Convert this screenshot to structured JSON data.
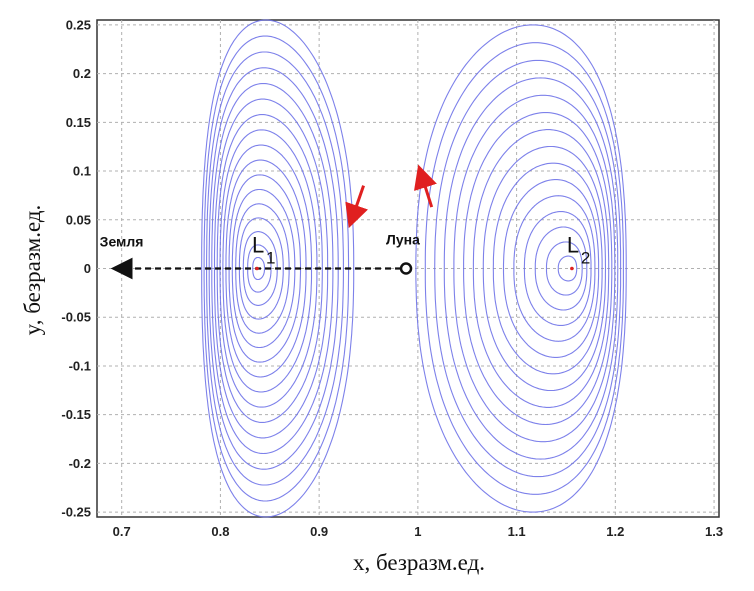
{
  "chart_data": {
    "type": "line",
    "xlabel": "x, безразм.ед.",
    "ylabel": "y, безразм.ед.",
    "xlim": [
      0.675,
      1.305
    ],
    "ylim": [
      -0.255,
      0.255
    ],
    "xticks": [
      "0.7",
      "0.8",
      "0.9",
      "1",
      "1.1",
      "1.2",
      "1.3"
    ],
    "yticks": [
      "0.25",
      "0.2",
      "0.15",
      "0.1",
      "0.05",
      "0",
      "-0.05",
      "-0.1",
      "-0.15",
      "-0.2",
      "-0.25"
    ],
    "grid": true,
    "orbit_color": "#6f73e8",
    "marker_color": "#e02020",
    "annotations": {
      "earth": {
        "label": "Земля",
        "x": 0.7,
        "y": 0
      },
      "moon": {
        "label": "Луна",
        "x": 0.988,
        "y": 0
      },
      "L1": {
        "label": "L",
        "sub": "1",
        "x": 0.837,
        "y": 0
      },
      "L2": {
        "label": "L",
        "sub": "2",
        "x": 1.156,
        "y": 0
      }
    },
    "families": [
      {
        "point": "L1",
        "center_x": 0.837,
        "x_inner": 0.8,
        "x_outer": 0.777,
        "y_extent": 0.255,
        "neck_x": 0.935,
        "count": 17
      },
      {
        "point": "L2",
        "center_x": 1.156,
        "x_inner": 1.19,
        "x_outer": 1.215,
        "y_extent": 0.25,
        "neck_x": 0.998,
        "count": 15
      }
    ],
    "arrows": [
      {
        "x1": 0.945,
        "y1": 0.085,
        "x2": 0.934,
        "y2": 0.053
      },
      {
        "x1": 1.014,
        "y1": 0.063,
        "x2": 1.004,
        "y2": 0.095
      }
    ]
  }
}
